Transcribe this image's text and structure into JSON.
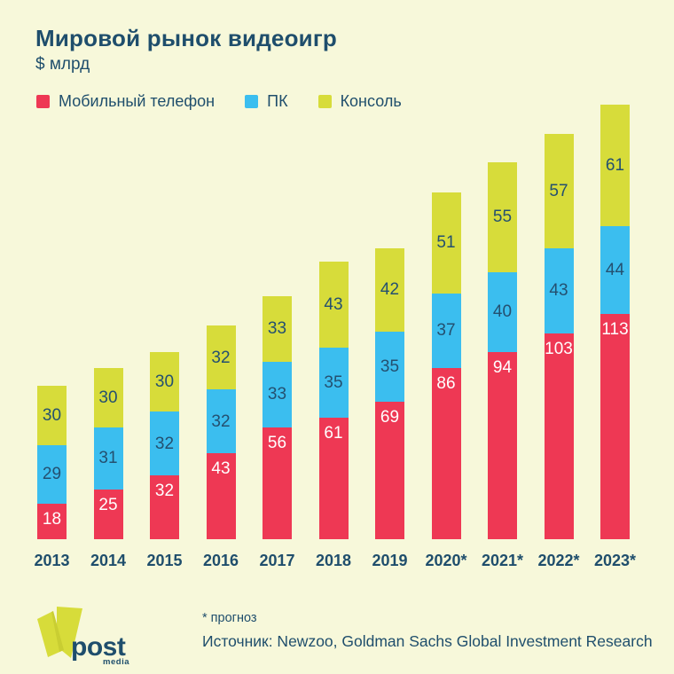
{
  "header": {
    "title": "Мировой рынок видеоигр",
    "subtitle": "$ млрд"
  },
  "chart_data": {
    "type": "bar",
    "stacked": true,
    "title": "Мировой рынок видеоигр",
    "unit": "$ млрд",
    "legend_position": "top",
    "grid": false,
    "categories": [
      "2013",
      "2014",
      "2015",
      "2016",
      "2017",
      "2018",
      "2019",
      "2020*",
      "2021*",
      "2022*",
      "2023*"
    ],
    "series": [
      {
        "name": "Мобильный телефон",
        "color": "#EE3854",
        "label_color": "#FFFFFF",
        "label_position": "top",
        "values": [
          18,
          25,
          32,
          43,
          56,
          61,
          69,
          86,
          94,
          103,
          113
        ]
      },
      {
        "name": "ПК",
        "color": "#3BBEEF",
        "label_color": "#245070",
        "label_position": "center",
        "values": [
          29,
          31,
          32,
          32,
          33,
          35,
          35,
          37,
          40,
          43,
          44
        ]
      },
      {
        "name": "Консоль",
        "color": "#D7DC3A",
        "label_color": "#245070",
        "label_position": "center",
        "values": [
          30,
          30,
          30,
          32,
          33,
          43,
          42,
          51,
          55,
          57,
          61
        ]
      }
    ]
  },
  "footer": {
    "footnote": "* прогноз",
    "source": "Источник: Newzoo, Goldman Sachs Global Investment Research",
    "logo": {
      "word": "post",
      "sub": "media"
    }
  },
  "style": {
    "background": "#F7F8DA",
    "text_color": "#1F4E6C",
    "logo_shape_color": "#D7DC3A"
  }
}
